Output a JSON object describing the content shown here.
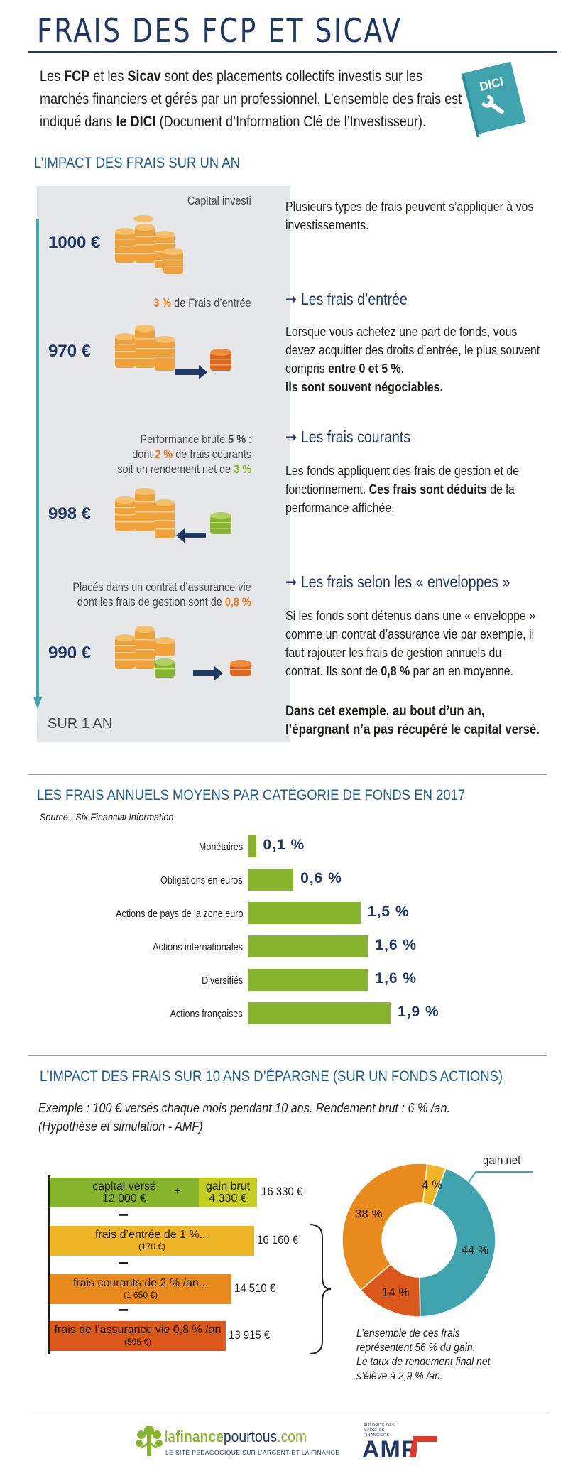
{
  "header": {
    "title": "FRAIS DES FCP ET SICAV",
    "intro_parts": [
      "Les ",
      "FCP",
      " et les ",
      "Sicav",
      " sont des placements collectifs investis sur les marchés financiers et gérés par un professionnel. L’ensemble des frais est indiqué dans ",
      "le DICI",
      " (Document d’Information Clé de l’Investisseur)."
    ],
    "book_label": "DICI"
  },
  "impact_one_year": {
    "title": "L’IMPACT DES FRAIS SUR UN AN",
    "capital_label": "Capital investi",
    "amount1": "1000 €",
    "entry_pct": "3 %",
    "entry_label": " de Frais d’entrée",
    "amount2": "970 €",
    "perf_line1_a": "Performance brute ",
    "perf_line1_b": "5 %",
    "perf_line1_c": " :",
    "perf_line2_a": "dont ",
    "perf_line2_b": "2 %",
    "perf_line2_c": " de frais courants",
    "perf_line3_a": "soit un rendement net de ",
    "perf_line3_b": "3 %",
    "amount3": "998 €",
    "assur_line1": "Placés dans un contrat d’assurance vie",
    "assur_line2_a": "dont les frais de gestion sont de ",
    "assur_line2_b": "0,8 %",
    "amount4": "990 €",
    "period_label": "SUR 1 AN",
    "intro_right": "Plusieurs types de frais peuvent s’appliquer à vos investissements.",
    "entry_head": "Les frais d’entrée",
    "entry_text_a": "Lorsque vous achetez une part de fonds, vous devez acquitter des droits d’entrée, le plus souvent compris ",
    "entry_text_b": "entre 0 et 5 %.",
    "entry_text_c": "Ils sont souvent négociables.",
    "current_head": "Les frais courants",
    "current_text_a": "Les fonds appliquent des frais de gestion et de fonctionnement. ",
    "current_text_b": "Ces frais sont déduits",
    "current_text_c": " de la performance affichée.",
    "envelope_head": "Les frais selon les « enveloppes »",
    "envelope_text_a": "Si les fonds sont détenus dans une « enveloppe » comme un contrat d’assurance vie par exemple, il faut rajouter les frais de gestion annuels du contrat. Ils sont de ",
    "envelope_text_b": "0,8 %",
    "envelope_text_c": " par an en moyenne.",
    "conclusion": "Dans cet exemple, au bout d’un an, l’épargnant n’a pas récupéré le capital versé."
  },
  "annual_fees": {
    "title": "LES FRAIS ANNUELS MOYENS PAR CATÉGORIE DE FONDS EN 2017",
    "source": "Source : Six Financial Information"
  },
  "chart_data": {
    "type": "bar",
    "orientation": "horizontal",
    "categories": [
      "Monétaires",
      "Obligations en euros",
      "Actions de pays de la zone euro",
      "Actions internationales",
      "Diversifiés",
      "Actions françaises"
    ],
    "values": [
      0.1,
      0.6,
      1.5,
      1.6,
      1.6,
      1.9
    ],
    "value_labels": [
      "0,1 %",
      "0,6 %",
      "1,5 %",
      "1,6 %",
      "1,6 %",
      "1,9 %"
    ],
    "title": "LES FRAIS ANNUELS MOYENS PAR CATÉGORIE DE FONDS EN 2017",
    "bar_color": "#86b52d"
  },
  "ten_years": {
    "title": "L’IMPACT DES FRAIS SUR 10 ANS D’ÉPARGNE (SUR UN FONDS ACTIONS)",
    "example_line1": "Exemple : 100 € versés chaque mois pendant 10 ans. Rendement brut : 6 % /an.",
    "example_line2": "(Hypothèse et simulation - AMF)",
    "bars": [
      {
        "label": "capital versé",
        "sub": "12 000 €",
        "plus": "+",
        "label2": "gain brut",
        "sub2": "4 330 €",
        "total": "16 330 €"
      },
      {
        "label": "frais d’entrée de 1 %...",
        "sub": "(170 €)",
        "total": "16 160 €"
      },
      {
        "label": "frais courants de 2 % /an...",
        "sub": "(1 650 €)",
        "total": "14 510 €"
      },
      {
        "label": "frais de l’assurance vie 0,8 % /an",
        "sub": "(595 €)",
        "total": "13 915 €"
      }
    ],
    "minus": "−",
    "donut": {
      "gain_label": "gain net",
      "slices": [
        {
          "name": "gain net",
          "value": 44,
          "label": "44 %",
          "color": "#40a4ae"
        },
        {
          "name": "frais assurance vie",
          "value": 14,
          "label": "14 %",
          "color": "#d9581a"
        },
        {
          "name": "frais courants",
          "value": 38,
          "label": "38 %",
          "color": "#e88b1c"
        },
        {
          "name": "frais d’entrée",
          "value": 4,
          "label": "4 %",
          "color": "#efb527"
        }
      ]
    },
    "footnote_line1": "L’ensemble de ces frais",
    "footnote_line2": "représentent 56 % du gain.",
    "footnote_line3": "Le taux de rendement final net",
    "footnote_line4": "s’élève à 2,9 % /an."
  },
  "footer": {
    "brand_a": "la",
    "brand_b": "finance",
    "brand_c": "pourtous",
    "brand_d": ".com",
    "tagline": "LE SITE PÉDAGOGIQUE SUR L’ARGENT ET LA FINANCE",
    "amf_top": "AUTORITÉ DES MARCHÉS FINANCIERS",
    "amf_logo": "AMF"
  },
  "colors": {
    "navy": "#1f3864",
    "teal": "#40a4ae",
    "orange": "#e8781e",
    "green": "#86b52d",
    "yellow": "#efb527"
  }
}
